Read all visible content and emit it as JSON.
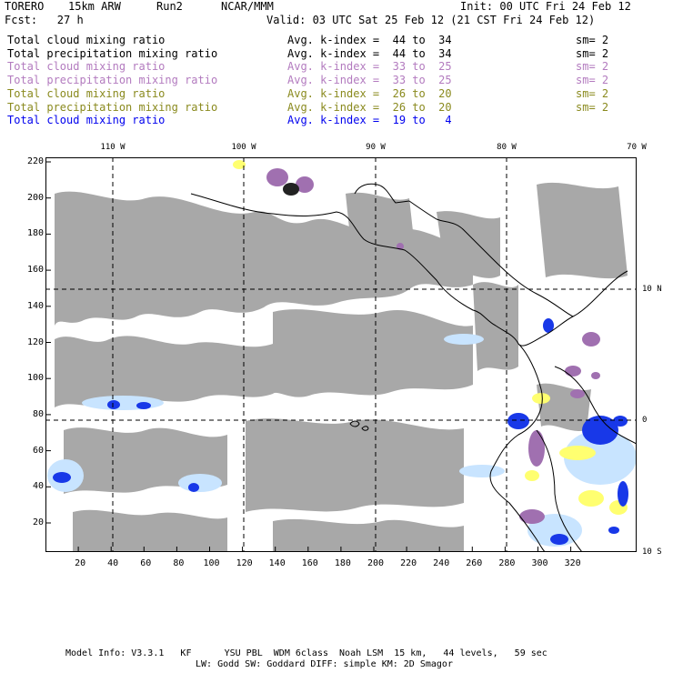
{
  "header": {
    "model": "TORERO",
    "resolution": "15km ARW",
    "run": "Run2",
    "org": "NCAR/MMM",
    "init": "Init: 00 UTC Fri 24 Feb 12",
    "fcst": "Fcst:   27 h",
    "valid": "Valid: 03 UTC Sat 25 Feb 12 (21 CST Fri 24 Feb 12)"
  },
  "legend": [
    {
      "field": "Total cloud mixing ratio",
      "kindex": "Avg. k-index =  44 to  34",
      "sm": "sm= 2",
      "color": "#000000"
    },
    {
      "field": "Total precipitation mixing ratio",
      "kindex": "Avg. k-index =  44 to  34",
      "sm": "sm= 2",
      "color": "#000000"
    },
    {
      "field": "Total cloud mixing ratio",
      "kindex": "Avg. k-index =  33 to  25",
      "sm": "sm= 2",
      "color": "#b37bbf"
    },
    {
      "field": "Total precipitation mixing ratio",
      "kindex": "Avg. k-index =  33 to  25",
      "sm": "sm= 2",
      "color": "#b37bbf"
    },
    {
      "field": "Total cloud mixing ratio",
      "kindex": "Avg. k-index =  26 to  20",
      "sm": "sm= 2",
      "color": "#8a8a1e"
    },
    {
      "field": "Total precipitation mixing ratio",
      "kindex": "Avg. k-index =  26 to  20",
      "sm": "sm= 2",
      "color": "#8a8a1e"
    },
    {
      "field": "Total cloud mixing ratio",
      "kindex": "Avg. k-index =  19 to   4",
      "sm": "",
      "color": "#0000ee"
    }
  ],
  "map": {
    "grid_x_ticks": [
      "20",
      "40",
      "60",
      "80",
      "100",
      "120",
      "140",
      "160",
      "180",
      "200",
      "220",
      "240",
      "260",
      "280",
      "300",
      "320"
    ],
    "grid_y_ticks": [
      "20",
      "40",
      "60",
      "80",
      "100",
      "120",
      "140",
      "160",
      "180",
      "200",
      "220"
    ],
    "lon_labels": [
      "110 W",
      "100 W",
      "90 W",
      "80 W",
      "70 W"
    ],
    "lat_labels": [
      "10 N",
      "0",
      "10 S"
    ],
    "colors": {
      "cloud_gray": "#a8a8a8",
      "cloud_black": "#222222",
      "purple": "#a070b0",
      "yellow": "#ffff70",
      "blue": "#1838e8",
      "light_blue": "#c8e4ff",
      "coast": "#000000"
    }
  },
  "footer": {
    "line1": "Model Info: V3.3.1   KF      YSU PBL  WDM 6class  Noah LSM  15 km,   44 levels,   59 sec",
    "line2": "LW: Godd SW: Goddard DIFF: simple KM: 2D Smagor"
  }
}
